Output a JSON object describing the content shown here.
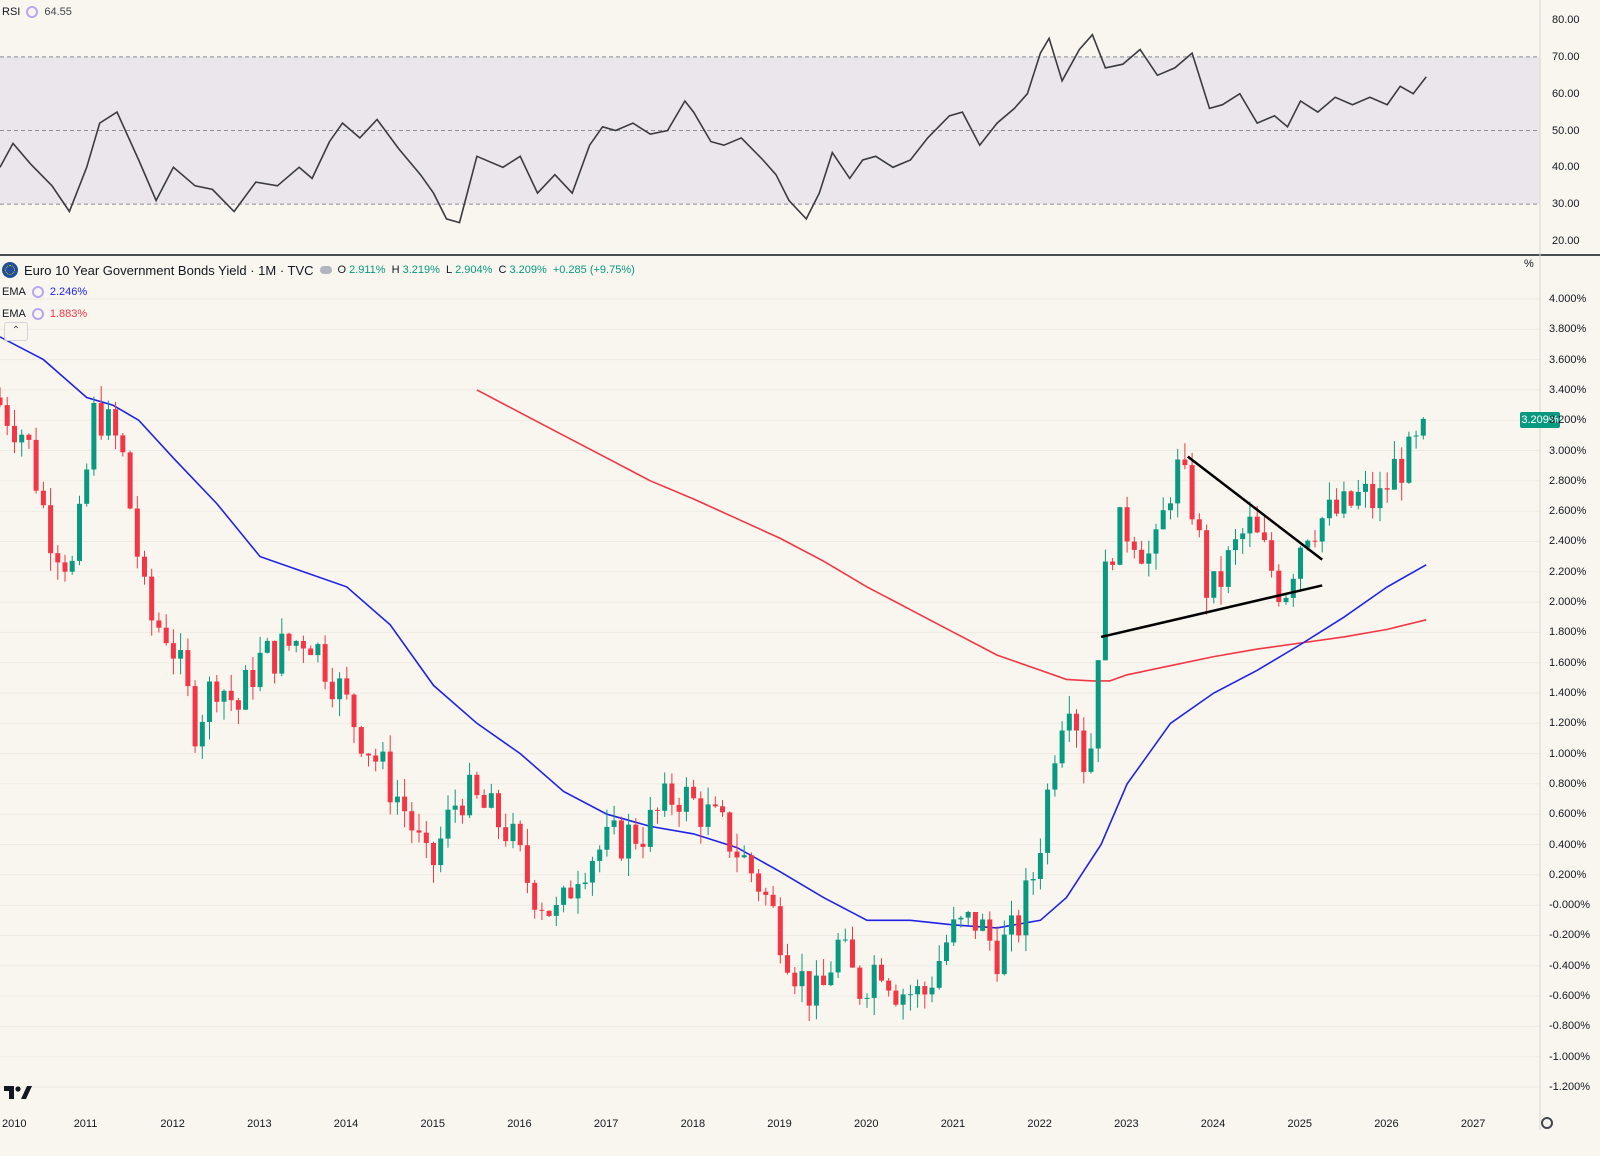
{
  "indicator_pane": {
    "name": "RSI",
    "value": "64.55",
    "y_ticks": [
      "80.00",
      "70.00",
      "60.00",
      "50.00",
      "40.00",
      "30.00",
      "20.00"
    ]
  },
  "main_pane": {
    "title": "Euro 10 Year Government Bonds Yield · 1M · TVC",
    "ohlc": {
      "o_label": "O",
      "o": "2.911%",
      "h_label": "H",
      "h": "3.219%",
      "l_label": "L",
      "l": "2.904%",
      "c_label": "C",
      "c": "3.209%",
      "change": "+0.285 (+9.75%)"
    },
    "ema_fast": {
      "label": "EMA",
      "value": "2.246%"
    },
    "ema_slow": {
      "label": "EMA",
      "value": "1.883%"
    },
    "unit_label": "%",
    "last_price_badge": "3.209%",
    "y_ticks": [
      "4.000%",
      "3.800%",
      "3.600%",
      "3.400%",
      "3.200%",
      "3.000%",
      "2.800%",
      "2.600%",
      "2.400%",
      "2.200%",
      "2.000%",
      "1.800%",
      "1.600%",
      "1.400%",
      "1.200%",
      "1.000%",
      "0.800%",
      "0.600%",
      "0.400%",
      "0.200%",
      "-0.000%",
      "-0.200%",
      "-0.400%",
      "-0.600%",
      "-0.800%",
      "-1.000%",
      "-1.200%"
    ],
    "x_ticks": [
      "2010",
      "2011",
      "2012",
      "2013",
      "2014",
      "2015",
      "2016",
      "2017",
      "2018",
      "2019",
      "2020",
      "2021",
      "2022",
      "2023",
      "2024",
      "2025",
      "2026",
      "2027"
    ]
  },
  "colors": {
    "background": "#f8f6ef",
    "up": "#089981",
    "down": "#f23645",
    "ema_fast": "#2023e6",
    "ema_slow": "#f23645",
    "rsi_line": "#3a3b40",
    "rsi_band": "#ebe6ec"
  },
  "chart_data": [
    {
      "type": "line",
      "indicator": "RSI",
      "ylim": [
        18,
        83
      ],
      "band": [
        30,
        70
      ],
      "midline": 50,
      "x": [
        2010.0,
        2010.15,
        2010.35,
        2010.6,
        2010.8,
        2011.0,
        2011.15,
        2011.35,
        2011.6,
        2011.8,
        2012.0,
        2012.25,
        2012.45,
        2012.7,
        2012.95,
        2013.2,
        2013.45,
        2013.6,
        2013.8,
        2013.95,
        2014.15,
        2014.35,
        2014.6,
        2014.85,
        2015.0,
        2015.15,
        2015.3,
        2015.5,
        2015.8,
        2016.0,
        2016.2,
        2016.4,
        2016.6,
        2016.8,
        2016.95,
        2017.1,
        2017.3,
        2017.5,
        2017.7,
        2017.9,
        2018.0,
        2018.2,
        2018.35,
        2018.55,
        2018.8,
        2018.95,
        2019.1,
        2019.3,
        2019.45,
        2019.6,
        2019.8,
        2019.95,
        2020.1,
        2020.3,
        2020.5,
        2020.7,
        2020.95,
        2021.1,
        2021.3,
        2021.5,
        2021.7,
        2021.85,
        2022.0,
        2022.1,
        2022.25,
        2022.45,
        2022.6,
        2022.75,
        2022.95,
        2023.15,
        2023.35,
        2023.55,
        2023.75,
        2023.95,
        2024.1,
        2024.3,
        2024.5,
        2024.7,
        2024.85,
        2025.0,
        2025.2,
        2025.4,
        2025.6,
        2025.8,
        2026.0,
        2026.15,
        2026.3,
        2026.45
      ],
      "y": [
        40,
        46.5,
        41,
        35,
        28,
        40,
        52,
        55,
        42,
        31,
        40,
        35,
        34,
        28,
        36,
        35,
        40,
        37,
        47,
        52,
        48,
        53,
        45,
        38,
        33,
        26,
        25,
        43,
        40,
        43,
        33,
        38,
        33,
        46,
        51,
        50,
        52,
        49,
        50,
        58,
        55,
        47,
        46,
        48,
        42,
        38,
        31,
        26,
        33,
        44,
        37,
        42,
        43,
        40,
        42,
        48,
        54,
        55,
        46,
        52,
        56,
        60,
        71,
        75,
        63.5,
        72,
        76,
        67,
        68,
        72,
        65,
        67,
        71,
        56,
        57,
        60,
        52,
        54,
        51,
        58,
        55,
        59,
        57,
        59,
        57,
        62,
        60,
        64.55
      ]
    },
    {
      "type": "candlestick",
      "series_name": "Euro 10 Year Government Bonds Yield",
      "timeframe": "1M",
      "ylim": [
        -1.2,
        4.0
      ],
      "x_labels": [
        "2010",
        "2011",
        "2012",
        "2013",
        "2014",
        "2015",
        "2016",
        "2017",
        "2018",
        "2019",
        "2020",
        "2021",
        "2022",
        "2023",
        "2024",
        "2025",
        "2026",
        "2027"
      ],
      "anchors": {
        "x": [
          2010.0,
          2010.3,
          2010.55,
          2010.85,
          2011.1,
          2011.4,
          2011.7,
          2011.95,
          2012.25,
          2012.5,
          2012.75,
          2012.95,
          2013.3,
          2013.55,
          2013.85,
          2014.1,
          2014.4,
          2014.7,
          2014.95,
          2015.1,
          2015.3,
          2015.55,
          2015.85,
          2016.1,
          2016.45,
          2016.65,
          2016.85,
          2017.2,
          2017.45,
          2017.8,
          2018.05,
          2018.4,
          2018.75,
          2018.95,
          2019.2,
          2019.45,
          2019.65,
          2019.9,
          2020.15,
          2020.35,
          2020.65,
          2020.95,
          2021.25,
          2021.5,
          2021.7,
          2021.9,
          2022.05,
          2022.2,
          2022.35,
          2022.55,
          2022.7,
          2022.85,
          2023.05,
          2023.3,
          2023.55,
          2023.75,
          2023.95,
          2024.2,
          2024.4,
          2024.6,
          2024.8,
          2025.05,
          2025.25,
          2025.5,
          2025.7,
          2025.9,
          2026.1,
          2026.3,
          2026.45
        ],
        "close": [
          3.3,
          3.1,
          2.5,
          2.2,
          3.3,
          3.0,
          1.9,
          1.8,
          1.2,
          1.5,
          1.3,
          1.6,
          1.7,
          1.8,
          1.5,
          1.2,
          0.9,
          0.6,
          0.2,
          0.45,
          0.75,
          0.65,
          0.5,
          0.15,
          -0.1,
          0.25,
          0.35,
          0.45,
          0.5,
          0.75,
          0.65,
          0.45,
          0.15,
          -0.1,
          -0.45,
          -0.65,
          -0.25,
          -0.55,
          -0.35,
          -0.55,
          -0.6,
          -0.2,
          -0.1,
          -0.3,
          -0.2,
          0.15,
          0.6,
          1.2,
          1.45,
          0.8,
          2.0,
          2.45,
          2.5,
          2.25,
          2.9,
          2.65,
          2.0,
          2.3,
          2.5,
          2.3,
          2.05,
          2.5,
          2.55,
          2.6,
          2.7,
          2.65,
          2.9,
          2.95,
          3.209
        ]
      },
      "ema_fast": {
        "x": [
          2010.0,
          2010.5,
          2011.0,
          2011.3,
          2011.6,
          2012.0,
          2012.5,
          2013.0,
          2013.5,
          2014.0,
          2014.5,
          2015.0,
          2015.5,
          2016.0,
          2016.5,
          2017.0,
          2017.5,
          2018.0,
          2018.5,
          2019.0,
          2019.5,
          2020.0,
          2020.5,
          2021.0,
          2021.5,
          2022.0,
          2022.3,
          2022.7,
          2023.0,
          2023.5,
          2024.0,
          2024.5,
          2025.0,
          2025.5,
          2026.0,
          2026.45
        ],
        "y": [
          3.75,
          3.6,
          3.35,
          3.3,
          3.2,
          2.95,
          2.65,
          2.3,
          2.2,
          2.1,
          1.85,
          1.45,
          1.2,
          1.0,
          0.75,
          0.6,
          0.52,
          0.47,
          0.38,
          0.22,
          0.05,
          -0.1,
          -0.1,
          -0.13,
          -0.15,
          -0.1,
          0.05,
          0.4,
          0.8,
          1.2,
          1.4,
          1.55,
          1.72,
          1.9,
          2.1,
          2.246
        ]
      },
      "ema_slow": {
        "x": [
          2015.5,
          2016.0,
          2016.5,
          2017.0,
          2017.5,
          2018.0,
          2018.5,
          2019.0,
          2019.5,
          2020.0,
          2020.5,
          2021.0,
          2021.5,
          2022.0,
          2022.3,
          2022.6,
          2022.8,
          2023.0,
          2023.5,
          2024.0,
          2024.5,
          2025.0,
          2025.5,
          2026.0,
          2026.45
        ],
        "y": [
          3.4,
          3.25,
          3.1,
          2.95,
          2.8,
          2.68,
          2.55,
          2.42,
          2.27,
          2.1,
          1.95,
          1.8,
          1.65,
          1.55,
          1.49,
          1.48,
          1.48,
          1.52,
          1.58,
          1.64,
          1.69,
          1.73,
          1.77,
          1.82,
          1.883
        ]
      },
      "trendlines": [
        {
          "x1": 2023.7,
          "y1": 2.96,
          "x2": 2025.25,
          "y2": 2.28
        },
        {
          "x1": 2022.7,
          "y1": 1.77,
          "x2": 2025.25,
          "y2": 2.11
        }
      ]
    }
  ]
}
